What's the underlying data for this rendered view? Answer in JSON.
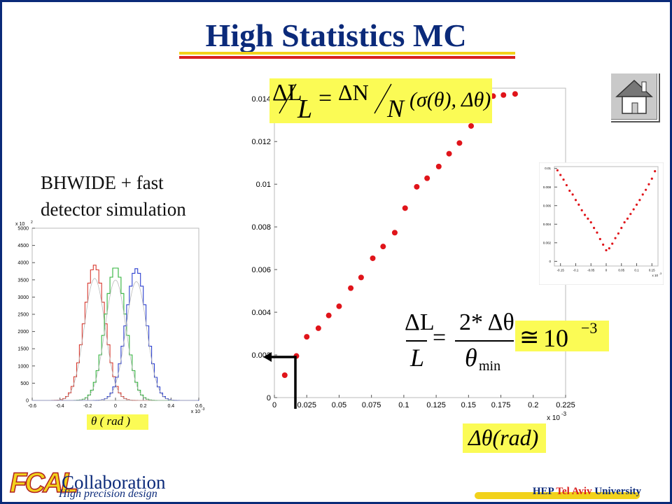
{
  "page": {
    "title": "High Statistics MC",
    "subtitle_line1": "BHWIDE + fast",
    "subtitle_line2": "detector simulation",
    "footer_logo": "FCAL",
    "footer_collab": "Collaboration",
    "footer_precision": "High precision design",
    "footer_hep": "HEP",
    "footer_tau": "Tel Aviv",
    "footer_univ": "University",
    "home_icon": "house-icon",
    "colors": {
      "title": "#0b2a7a",
      "accent_yellow": "#f2d21b",
      "accent_red": "#d8201f",
      "formula_bg": "#fbfb55",
      "points": "#e0141a"
    }
  },
  "formulas": {
    "f1_lhs_num": "ΔL",
    "f1_lhs_den": "L",
    "f1_eq": "=",
    "f1_rhs_num": "ΔN",
    "f1_rhs_den": "N",
    "f1_rhs_args": "(σ(θ), Δθ)",
    "f2_lhs_num": "ΔL",
    "f2_lhs_den": "L",
    "f2_eq": "=",
    "f2_rhs_num": "2* Δθ",
    "f2_rhs_den": "θ",
    "f2_rhs_sub": "min",
    "f3_approx": "≅",
    "f3_base": "10",
    "f3_exp": "−3",
    "f4_xlabel": "Δθ(rad)",
    "f5_label": "θ ( rad )"
  },
  "chart_data": [
    {
      "type": "scatter",
      "title": "",
      "xlabel": "Δθ(rad)",
      "ylabel": "",
      "x_multiplier_label": "x 10",
      "x_multiplier_exp": "-3",
      "xlim": [
        0,
        0.225
      ],
      "ylim": [
        0,
        0.0145
      ],
      "xticks": [
        0,
        0.025,
        0.05,
        0.075,
        0.1,
        0.125,
        0.15,
        0.175,
        0.2,
        0.225
      ],
      "xtick_labels": [
        "0",
        "0.025",
        "0.05",
        "0.075",
        "0.1",
        "0.125",
        "0.15",
        "0.175",
        "0.2",
        "0.225"
      ],
      "yticks": [
        0,
        0.002,
        0.004,
        0.006,
        0.008,
        0.01,
        0.012,
        0.014
      ],
      "ytick_labels": [
        "0",
        "0.002",
        "0.004",
        "0.006",
        "0.008",
        "0.01",
        "0.012",
        "0.014"
      ],
      "series": [
        {
          "color": "#e0141a",
          "x": [
            0.008,
            0.017,
            0.025,
            0.034,
            0.042,
            0.05,
            0.059,
            0.067,
            0.076,
            0.084,
            0.093,
            0.101,
            0.11,
            0.118,
            0.127,
            0.135,
            0.143,
            0.152,
            0.16,
            0.169,
            0.177,
            0.186
          ],
          "y": [
            0.00105,
            0.00195,
            0.00285,
            0.00325,
            0.00385,
            0.00428,
            0.00513,
            0.00563,
            0.00653,
            0.00708,
            0.00773,
            0.00888,
            0.00988,
            0.01028,
            0.01083,
            0.01143,
            0.01193,
            0.01273,
            0.01363,
            0.01413,
            0.01418,
            0.01423
          ]
        }
      ]
    },
    {
      "type": "line",
      "title": "",
      "xlabel": "",
      "ylabel": "",
      "y_multiplier_label": "x 10",
      "y_multiplier_exp": "2",
      "x_multiplier_label": "x 10",
      "x_multiplier_exp": "-3",
      "xlim": [
        -0.6,
        0.6
      ],
      "ylim": [
        0,
        5000
      ],
      "xticks": [
        -0.6,
        -0.4,
        -0.2,
        0,
        0.2,
        0.4,
        0.6
      ],
      "xtick_labels": [
        "-0.6",
        "-0.4",
        "-0.2",
        "0",
        "0.2",
        "0.4",
        "0.6"
      ],
      "yticks": [
        0,
        500,
        1000,
        1500,
        2000,
        2500,
        3000,
        3500,
        4000,
        4500,
        5000
      ],
      "ytick_labels": [
        "0",
        "500",
        "1000",
        "1500",
        "2000",
        "2500",
        "3000",
        "3500",
        "4000",
        "4500",
        "5000"
      ],
      "series": [
        {
          "color": "#d8392f",
          "center": -0.15,
          "peak": 3850,
          "sigma": 0.075
        },
        {
          "color": "#2fb33a",
          "center": 0.0,
          "peak": 3800,
          "sigma": 0.075
        },
        {
          "color": "#2b3fcf",
          "center": 0.15,
          "peak": 3750,
          "sigma": 0.075
        }
      ]
    },
    {
      "type": "scatter",
      "title": "",
      "xlabel": "",
      "ylabel": "",
      "x_multiplier_label": "x 10",
      "x_multiplier_exp": "-3",
      "xlim": [
        -0.17,
        0.17
      ],
      "ylim": [
        -0.0005,
        0.0102
      ],
      "xticks": [
        -0.15,
        -0.1,
        -0.05,
        0,
        0.05,
        0.1,
        0.15
      ],
      "xtick_labels": [
        "-0.15",
        "-0.1",
        "-0.05",
        "0",
        "0.05",
        "0.1",
        "0.15"
      ],
      "yticks": [
        0,
        0.002,
        0.004,
        0.006,
        0.008,
        0.01
      ],
      "ytick_labels": [
        "0",
        "0.002",
        "0.004",
        "0.006",
        "0.008",
        "0.01"
      ],
      "series": [
        {
          "color": "#e0141a",
          "x": [
            -0.16,
            -0.15,
            -0.14,
            -0.13,
            -0.12,
            -0.11,
            -0.1,
            -0.09,
            -0.08,
            -0.07,
            -0.06,
            -0.05,
            -0.04,
            -0.03,
            -0.02,
            -0.01,
            0.0,
            0.01,
            0.02,
            0.03,
            0.04,
            0.05,
            0.06,
            0.07,
            0.08,
            0.09,
            0.1,
            0.11,
            0.12,
            0.13,
            0.14,
            0.15,
            0.16
          ],
          "y": [
            0.0098,
            0.0093,
            0.0088,
            0.0082,
            0.0076,
            0.0072,
            0.0066,
            0.0061,
            0.0055,
            0.005,
            0.0046,
            0.0042,
            0.0036,
            0.0031,
            0.0024,
            0.0018,
            0.0012,
            0.0014,
            0.0019,
            0.0025,
            0.003,
            0.0036,
            0.0042,
            0.0046,
            0.0051,
            0.0056,
            0.0061,
            0.0066,
            0.0072,
            0.0077,
            0.0083,
            0.0089,
            0.0097
          ]
        }
      ]
    }
  ]
}
